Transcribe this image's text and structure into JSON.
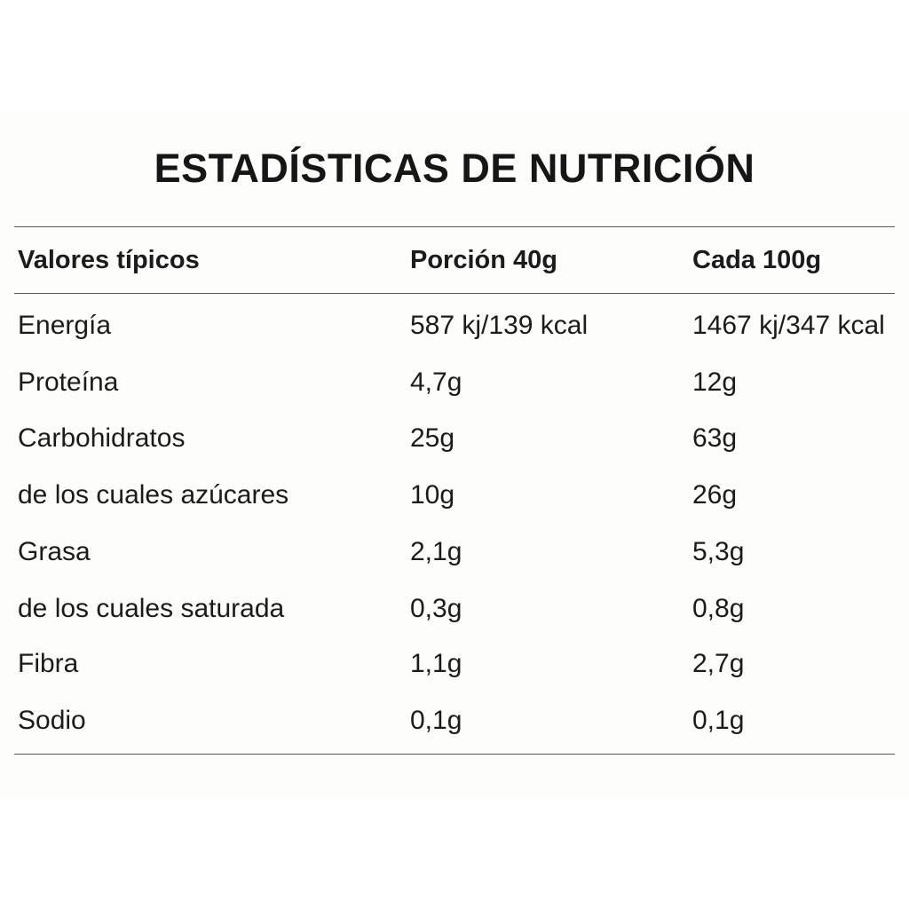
{
  "title": "ESTADÍSTICAS DE NUTRICIÓN",
  "table": {
    "headers": [
      "Valores típicos",
      "Porción 40g",
      "Cada 100g"
    ],
    "rows": [
      [
        "Energía",
        "587 kj/139 kcal",
        "1467 kj/347 kcal"
      ],
      [
        "Proteína",
        "4,7g",
        "12g"
      ],
      [
        "Carbohidratos",
        "25g",
        "63g"
      ],
      [
        "de los cuales azúcares",
        "10g",
        "26g"
      ],
      [
        "Grasa",
        "2,1g",
        "5,3g"
      ],
      [
        "de los cuales saturada",
        "0,3g",
        "0,8g"
      ],
      [
        "Fibra",
        "1,1g",
        "2,7g"
      ],
      [
        "Sodio",
        "0,1g",
        "0,1g"
      ]
    ]
  }
}
